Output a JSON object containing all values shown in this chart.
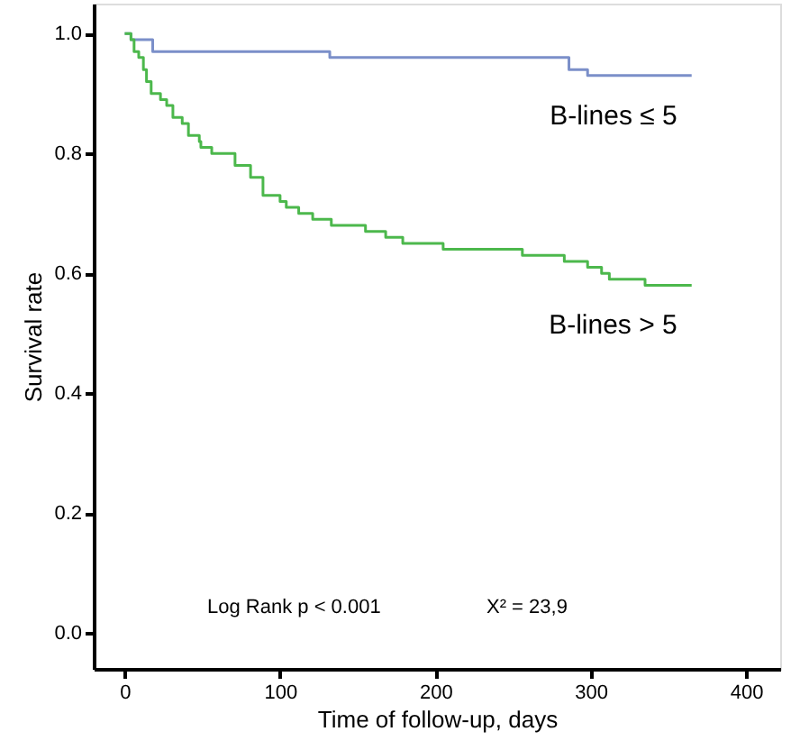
{
  "chart_data": {
    "type": "step",
    "xlabel": "Time of follow-up, days",
    "ylabel": "Survival rate",
    "annotations": [
      "Log Rank p < 0.001",
      "X² = 23,9"
    ],
    "xlim": [
      -20,
      422
    ],
    "ylim": [
      -0.06,
      1.05
    ],
    "xticks": [
      0,
      100,
      200,
      300,
      400
    ],
    "yticks": [
      {
        "value": 0,
        "label": "0.0"
      },
      {
        "value": 0.2,
        "label": "0.2"
      },
      {
        "value": 0.4,
        "label": "0.4"
      },
      {
        "value": 0.6,
        "label": "0.6"
      },
      {
        "value": 0.8,
        "label": "0.8"
      },
      {
        "value": 1,
        "label": "1.0"
      }
    ],
    "grid": false,
    "series": [
      {
        "name": "B-lines ≤ 5",
        "color": "#7b8fc9",
        "x": [
          0,
          4,
          18,
          132,
          286,
          298,
          365
        ],
        "values": [
          1.0,
          0.99,
          0.97,
          0.96,
          0.94,
          0.93,
          0.93
        ]
      },
      {
        "name": "B-lines > 5",
        "color": "#4cb84c",
        "x": [
          0,
          4,
          6,
          9,
          12,
          14,
          17,
          19,
          23,
          27,
          31,
          37,
          41,
          48,
          49,
          56,
          62,
          71,
          81,
          89,
          100,
          104,
          112,
          121,
          133,
          155,
          160,
          168,
          179,
          198,
          205,
          256,
          263,
          283,
          298,
          307,
          312,
          335,
          365
        ],
        "values": [
          1.0,
          0.99,
          0.97,
          0.96,
          0.94,
          0.92,
          0.9,
          0.9,
          0.89,
          0.88,
          0.86,
          0.85,
          0.83,
          0.82,
          0.81,
          0.8,
          0.8,
          0.78,
          0.76,
          0.73,
          0.72,
          0.71,
          0.7,
          0.69,
          0.68,
          0.67,
          0.67,
          0.66,
          0.65,
          0.65,
          0.64,
          0.63,
          0.63,
          0.62,
          0.61,
          0.6,
          0.59,
          0.58,
          0.58
        ]
      }
    ]
  }
}
